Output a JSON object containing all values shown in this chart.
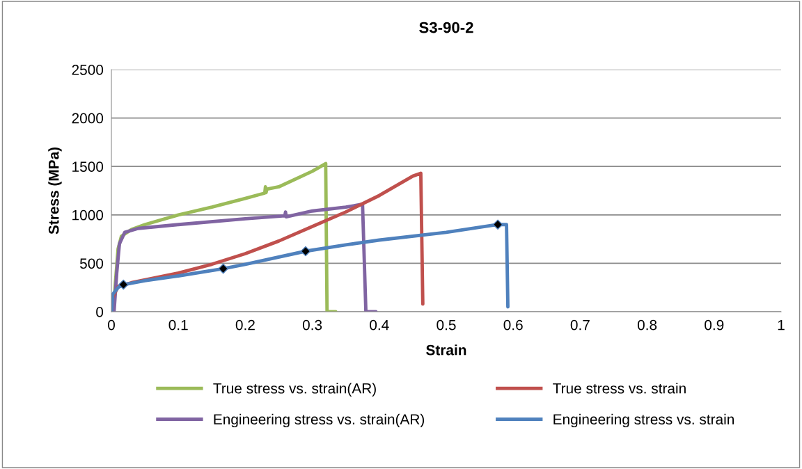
{
  "chart_data": {
    "type": "line",
    "title": "S3-90-2",
    "xlabel": "Strain",
    "ylabel": "Stress (MPa)",
    "xlim": [
      0,
      1
    ],
    "xticks": [
      0,
      0.1,
      0.2,
      0.3,
      0.4,
      0.5,
      0.6,
      0.7,
      0.8,
      0.9,
      1
    ],
    "ylim": [
      0,
      2500
    ],
    "yticks": [
      0,
      500,
      1000,
      1500,
      2000,
      2500
    ],
    "grid": "y",
    "legend": "bottom",
    "marker": "none",
    "line_style": "solid",
    "series": [
      {
        "name": "True stress vs. strain(AR)",
        "color": "#9bbb59",
        "x": [
          0.003,
          0.006,
          0.01,
          0.015,
          0.03,
          0.05,
          0.1,
          0.15,
          0.2,
          0.229,
          0.23,
          0.231,
          0.232,
          0.25,
          0.3,
          0.32,
          0.322,
          0.335
        ],
        "values": [
          0,
          300,
          650,
          780,
          850,
          900,
          1000,
          1080,
          1170,
          1225,
          1290,
          1230,
          1265,
          1290,
          1450,
          1530,
          0,
          0
        ]
      },
      {
        "name": "Engineering stress vs. strain(AR)",
        "color": "#8064a2",
        "x": [
          0.004,
          0.008,
          0.012,
          0.02,
          0.04,
          0.1,
          0.2,
          0.259,
          0.26,
          0.261,
          0.3,
          0.35,
          0.375,
          0.38,
          0.395
        ],
        "values": [
          0,
          400,
          700,
          820,
          860,
          900,
          960,
          990,
          1030,
          980,
          1040,
          1080,
          1110,
          0,
          0
        ]
      },
      {
        "name": "True stress vs. strain",
        "color": "#c0504d",
        "x": [
          0.002,
          0.01,
          0.03,
          0.1,
          0.15,
          0.2,
          0.25,
          0.3,
          0.35,
          0.4,
          0.45,
          0.462,
          0.465
        ],
        "values": [
          150,
          260,
          300,
          400,
          490,
          600,
          730,
          880,
          1030,
          1200,
          1400,
          1430,
          80
        ]
      },
      {
        "name": "Engineering stress vs. strain",
        "color": "#4f81bd",
        "x": [
          0,
          0.002,
          0.01,
          0.018,
          0.05,
          0.1,
          0.167,
          0.2,
          0.29,
          0.35,
          0.4,
          0.5,
          0.577,
          0.59,
          0.592
        ],
        "values": [
          0,
          180,
          250,
          280,
          320,
          370,
          445,
          490,
          625,
          690,
          740,
          820,
          900,
          900,
          50
        ]
      },
      {
        "type": "scatter",
        "color": "#000000",
        "marker": "diamond",
        "x": [
          0.018,
          0.167,
          0.29,
          0.577
        ],
        "values": [
          280,
          445,
          625,
          900
        ]
      }
    ]
  }
}
